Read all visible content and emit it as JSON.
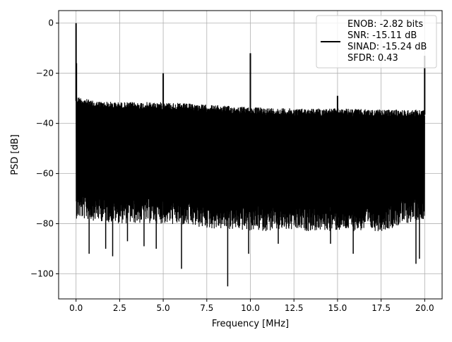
{
  "chart_data": {
    "type": "line",
    "xlabel": "Frequency [MHz]",
    "ylabel": "PSD [dB]",
    "xlim": [
      -1.0,
      21.0
    ],
    "ylim": [
      -110,
      5
    ],
    "xticks": [
      0.0,
      2.5,
      5.0,
      7.5,
      10.0,
      12.5,
      15.0,
      17.5,
      20.0
    ],
    "xtick_labels": [
      "0.0",
      "2.5",
      "5.0",
      "7.5",
      "10.0",
      "12.5",
      "15.0",
      "17.5",
      "20.0"
    ],
    "yticks": [
      0,
      -20,
      -40,
      -60,
      -80,
      -100
    ],
    "ytick_labels": [
      "0",
      "−20",
      "−40",
      "−60",
      "−80",
      "−100"
    ],
    "grid": true,
    "legend_position": "top-right",
    "series": [
      {
        "color": "#000000",
        "noise_floor_upper_db": [
          [
            0.0,
            -29
          ],
          [
            1.0,
            -31
          ],
          [
            2.5,
            -31.5
          ],
          [
            5.0,
            -31.5
          ],
          [
            7.5,
            -32.5
          ],
          [
            10.0,
            -33.5
          ],
          [
            12.5,
            -34
          ],
          [
            15.0,
            -34
          ],
          [
            17.5,
            -34.5
          ],
          [
            20.0,
            -34.5
          ]
        ],
        "noise_floor_lower_db": [
          [
            0.0,
            -74
          ],
          [
            2.5,
            -76
          ],
          [
            5.0,
            -76
          ],
          [
            7.5,
            -78
          ],
          [
            10.0,
            -79
          ],
          [
            12.5,
            -79
          ],
          [
            15.0,
            -79
          ],
          [
            17.5,
            -79
          ],
          [
            20.0,
            -74
          ]
        ],
        "spurs": [
          {
            "x": 0.0,
            "y": 0
          },
          {
            "x": 0.02,
            "y": -16
          },
          {
            "x": 5.0,
            "y": -20
          },
          {
            "x": 10.0,
            "y": -12
          },
          {
            "x": 15.0,
            "y": -29
          },
          {
            "x": 20.0,
            "y": -13
          }
        ],
        "dips": [
          {
            "x": 0.75,
            "y": -92
          },
          {
            "x": 1.7,
            "y": -90
          },
          {
            "x": 2.1,
            "y": -93
          },
          {
            "x": 2.95,
            "y": -87
          },
          {
            "x": 3.9,
            "y": -89
          },
          {
            "x": 4.6,
            "y": -90
          },
          {
            "x": 6.05,
            "y": -98
          },
          {
            "x": 8.7,
            "y": -105
          },
          {
            "x": 9.9,
            "y": -92
          },
          {
            "x": 11.6,
            "y": -88
          },
          {
            "x": 14.6,
            "y": -88
          },
          {
            "x": 15.9,
            "y": -92
          },
          {
            "x": 19.5,
            "y": -96
          },
          {
            "x": 19.7,
            "y": -94
          }
        ]
      }
    ],
    "legend": {
      "lines": [
        "ENOB: -2.82 bits",
        "SNR: -15.11 dB",
        "SINAD: -15.24 dB",
        "SFDR: 0.43"
      ]
    }
  }
}
